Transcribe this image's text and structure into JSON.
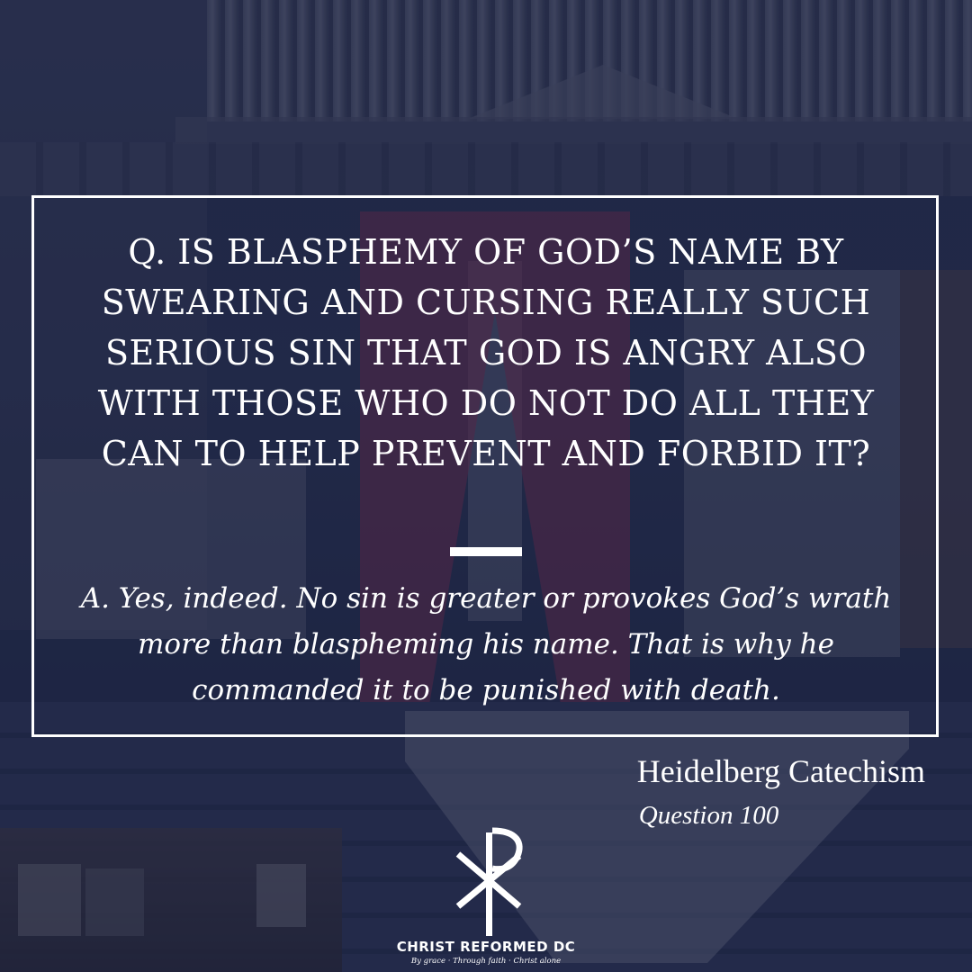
{
  "question": "Q. Is blasphemy of God’s name by swearing and cursing really such serious sin that God is angry also with those who do not do all they can to help prevent and forbid it?",
  "answer": "A. Yes, indeed. No sin is greater or provokes God’s wrath more than blaspheming his name. That is why he commanded it to be punished with death.",
  "source": {
    "title": "Heidelberg Catechism",
    "subtitle": "Question 100"
  },
  "logo": {
    "icon": "chi-rho-icon",
    "name": "CHRIST REFORMED DC",
    "tagline": "By grace · Through faith · Christ alone"
  },
  "colors": {
    "text": "#ffffff",
    "overlay": "#1e2a54"
  }
}
